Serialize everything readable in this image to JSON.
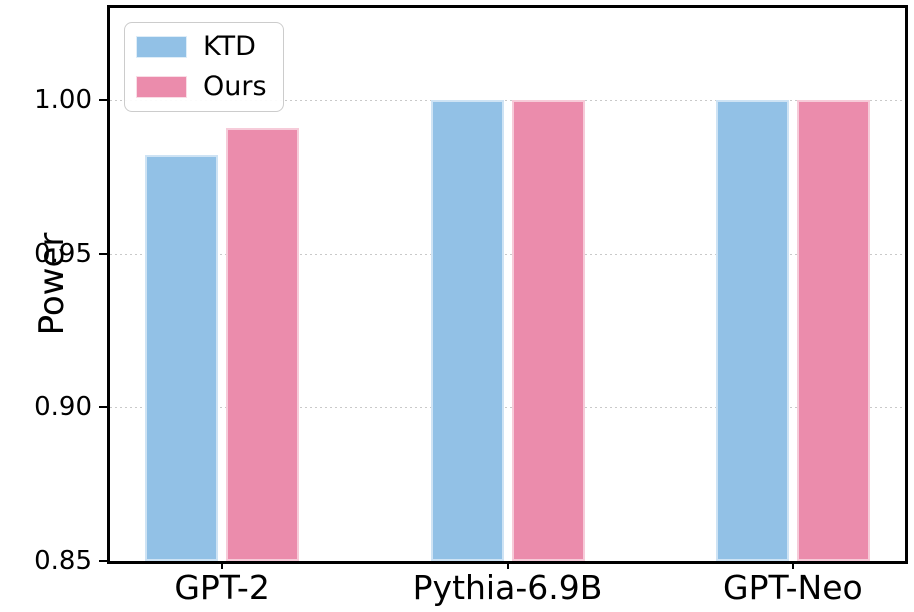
{
  "chart_data": {
    "type": "bar",
    "title": "",
    "xlabel": "",
    "ylabel": "Power",
    "categories": [
      "GPT-2",
      "Pythia-6.9B",
      "GPT-Neo"
    ],
    "series": [
      {
        "name": "KTD",
        "color": "#92C1E6",
        "values": [
          0.982,
          1.0,
          1.0
        ]
      },
      {
        "name": "Ours",
        "color": "#EB8CAC",
        "values": [
          0.991,
          1.0,
          1.0
        ]
      }
    ],
    "ylim": [
      0.85,
      1.03
    ],
    "yticks": [
      0.85,
      0.9,
      0.95,
      1.0
    ],
    "ytick_labels": [
      "0.85",
      "0.90",
      "0.95",
      "1.00"
    ],
    "grid": "horizontal-dotted",
    "legend_position": "upper-left",
    "background": "#ffffff",
    "axis_color": "#000000",
    "gridline_color": "#c9c9c9"
  }
}
